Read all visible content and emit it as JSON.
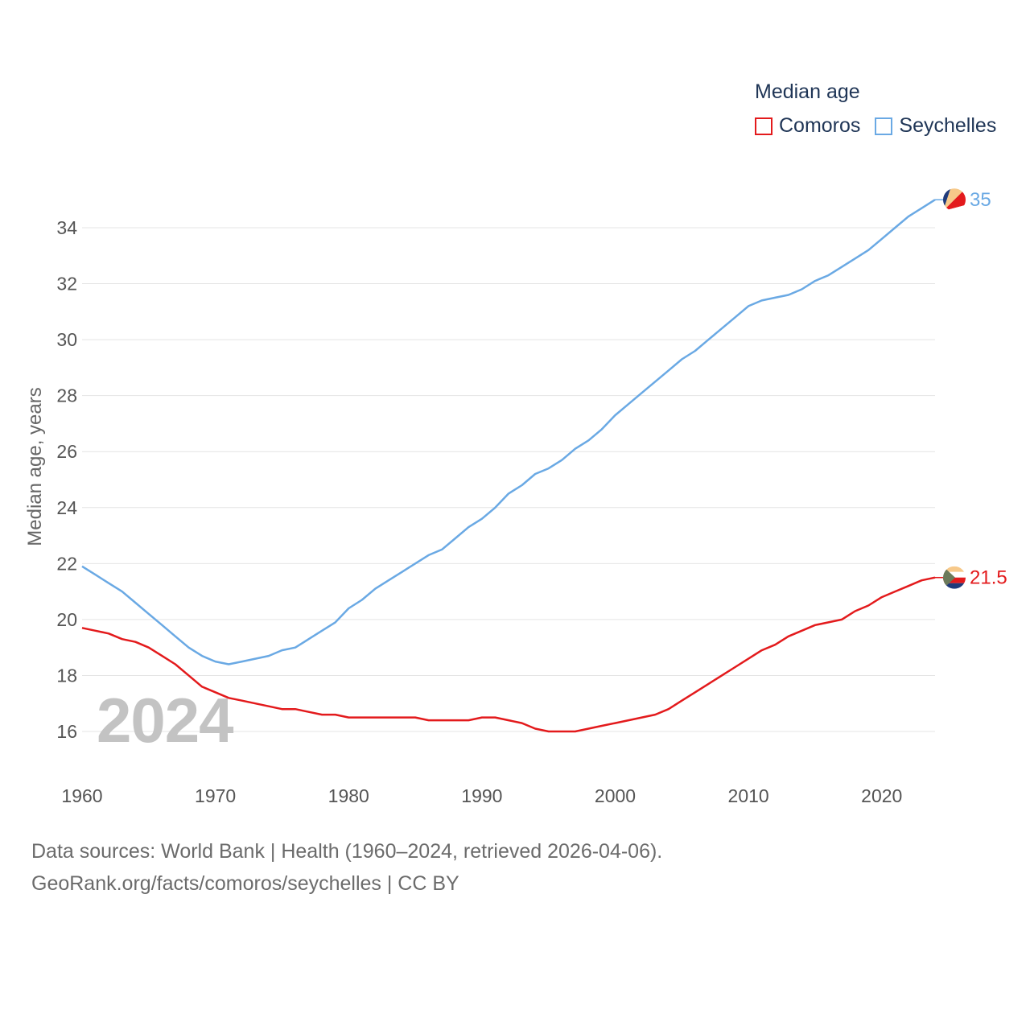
{
  "legend": {
    "title": "Median age",
    "items": [
      {
        "name": "Comoros",
        "color": "#e31a1c"
      },
      {
        "name": "Seychelles",
        "color": "#6aa9e4"
      }
    ]
  },
  "year_label": "2024",
  "footer": {
    "line1": "Data sources: World Bank | Health (1960–2024, retrieved 2026-04-06).",
    "line2": "GeoRank.org/facts/comoros/seychelles | CC BY"
  },
  "chart_data": {
    "type": "line",
    "ylabel": "Median age, years",
    "xlabel": "",
    "xlim": [
      1960,
      2024
    ],
    "ylim": [
      15,
      36
    ],
    "x_ticks": [
      1960,
      1970,
      1980,
      1990,
      2000,
      2010,
      2020
    ],
    "y_ticks": [
      16,
      18,
      20,
      22,
      24,
      26,
      28,
      30,
      32,
      34
    ],
    "x": [
      1960,
      1961,
      1962,
      1963,
      1964,
      1965,
      1966,
      1967,
      1968,
      1969,
      1970,
      1971,
      1972,
      1973,
      1974,
      1975,
      1976,
      1977,
      1978,
      1979,
      1980,
      1981,
      1982,
      1983,
      1984,
      1985,
      1986,
      1987,
      1988,
      1989,
      1990,
      1991,
      1992,
      1993,
      1994,
      1995,
      1996,
      1997,
      1998,
      1999,
      2000,
      2001,
      2002,
      2003,
      2004,
      2005,
      2006,
      2007,
      2008,
      2009,
      2010,
      2011,
      2012,
      2013,
      2014,
      2015,
      2016,
      2017,
      2018,
      2019,
      2020,
      2021,
      2022,
      2023,
      2024
    ],
    "series": [
      {
        "name": "Seychelles",
        "color": "#6aa9e4",
        "end_label": "35",
        "values": [
          21.9,
          21.6,
          21.3,
          21.0,
          20.6,
          20.2,
          19.8,
          19.4,
          19.0,
          18.7,
          18.5,
          18.4,
          18.5,
          18.6,
          18.7,
          18.9,
          19.0,
          19.3,
          19.6,
          19.9,
          20.4,
          20.7,
          21.1,
          21.4,
          21.7,
          22.0,
          22.3,
          22.5,
          22.9,
          23.3,
          23.6,
          24.0,
          24.5,
          24.8,
          25.2,
          25.4,
          25.7,
          26.1,
          26.4,
          26.8,
          27.3,
          27.7,
          28.1,
          28.5,
          28.9,
          29.3,
          29.6,
          30.0,
          30.4,
          30.8,
          31.2,
          31.4,
          31.5,
          31.6,
          31.8,
          32.1,
          32.3,
          32.6,
          32.9,
          33.2,
          33.6,
          34.0,
          34.4,
          34.7,
          35.0
        ]
      },
      {
        "name": "Comoros",
        "color": "#e31a1c",
        "end_label": "21.5",
        "values": [
          19.7,
          19.6,
          19.5,
          19.3,
          19.2,
          19.0,
          18.7,
          18.4,
          18.0,
          17.6,
          17.4,
          17.2,
          17.1,
          17.0,
          16.9,
          16.8,
          16.8,
          16.7,
          16.6,
          16.6,
          16.5,
          16.5,
          16.5,
          16.5,
          16.5,
          16.5,
          16.4,
          16.4,
          16.4,
          16.4,
          16.5,
          16.5,
          16.4,
          16.3,
          16.1,
          16.0,
          16.0,
          16.0,
          16.1,
          16.2,
          16.3,
          16.4,
          16.5,
          16.6,
          16.8,
          17.1,
          17.4,
          17.7,
          18.0,
          18.3,
          18.6,
          18.9,
          19.1,
          19.4,
          19.6,
          19.8,
          19.9,
          20.0,
          20.3,
          20.5,
          20.8,
          21.0,
          21.2,
          21.4,
          21.5
        ]
      }
    ]
  }
}
